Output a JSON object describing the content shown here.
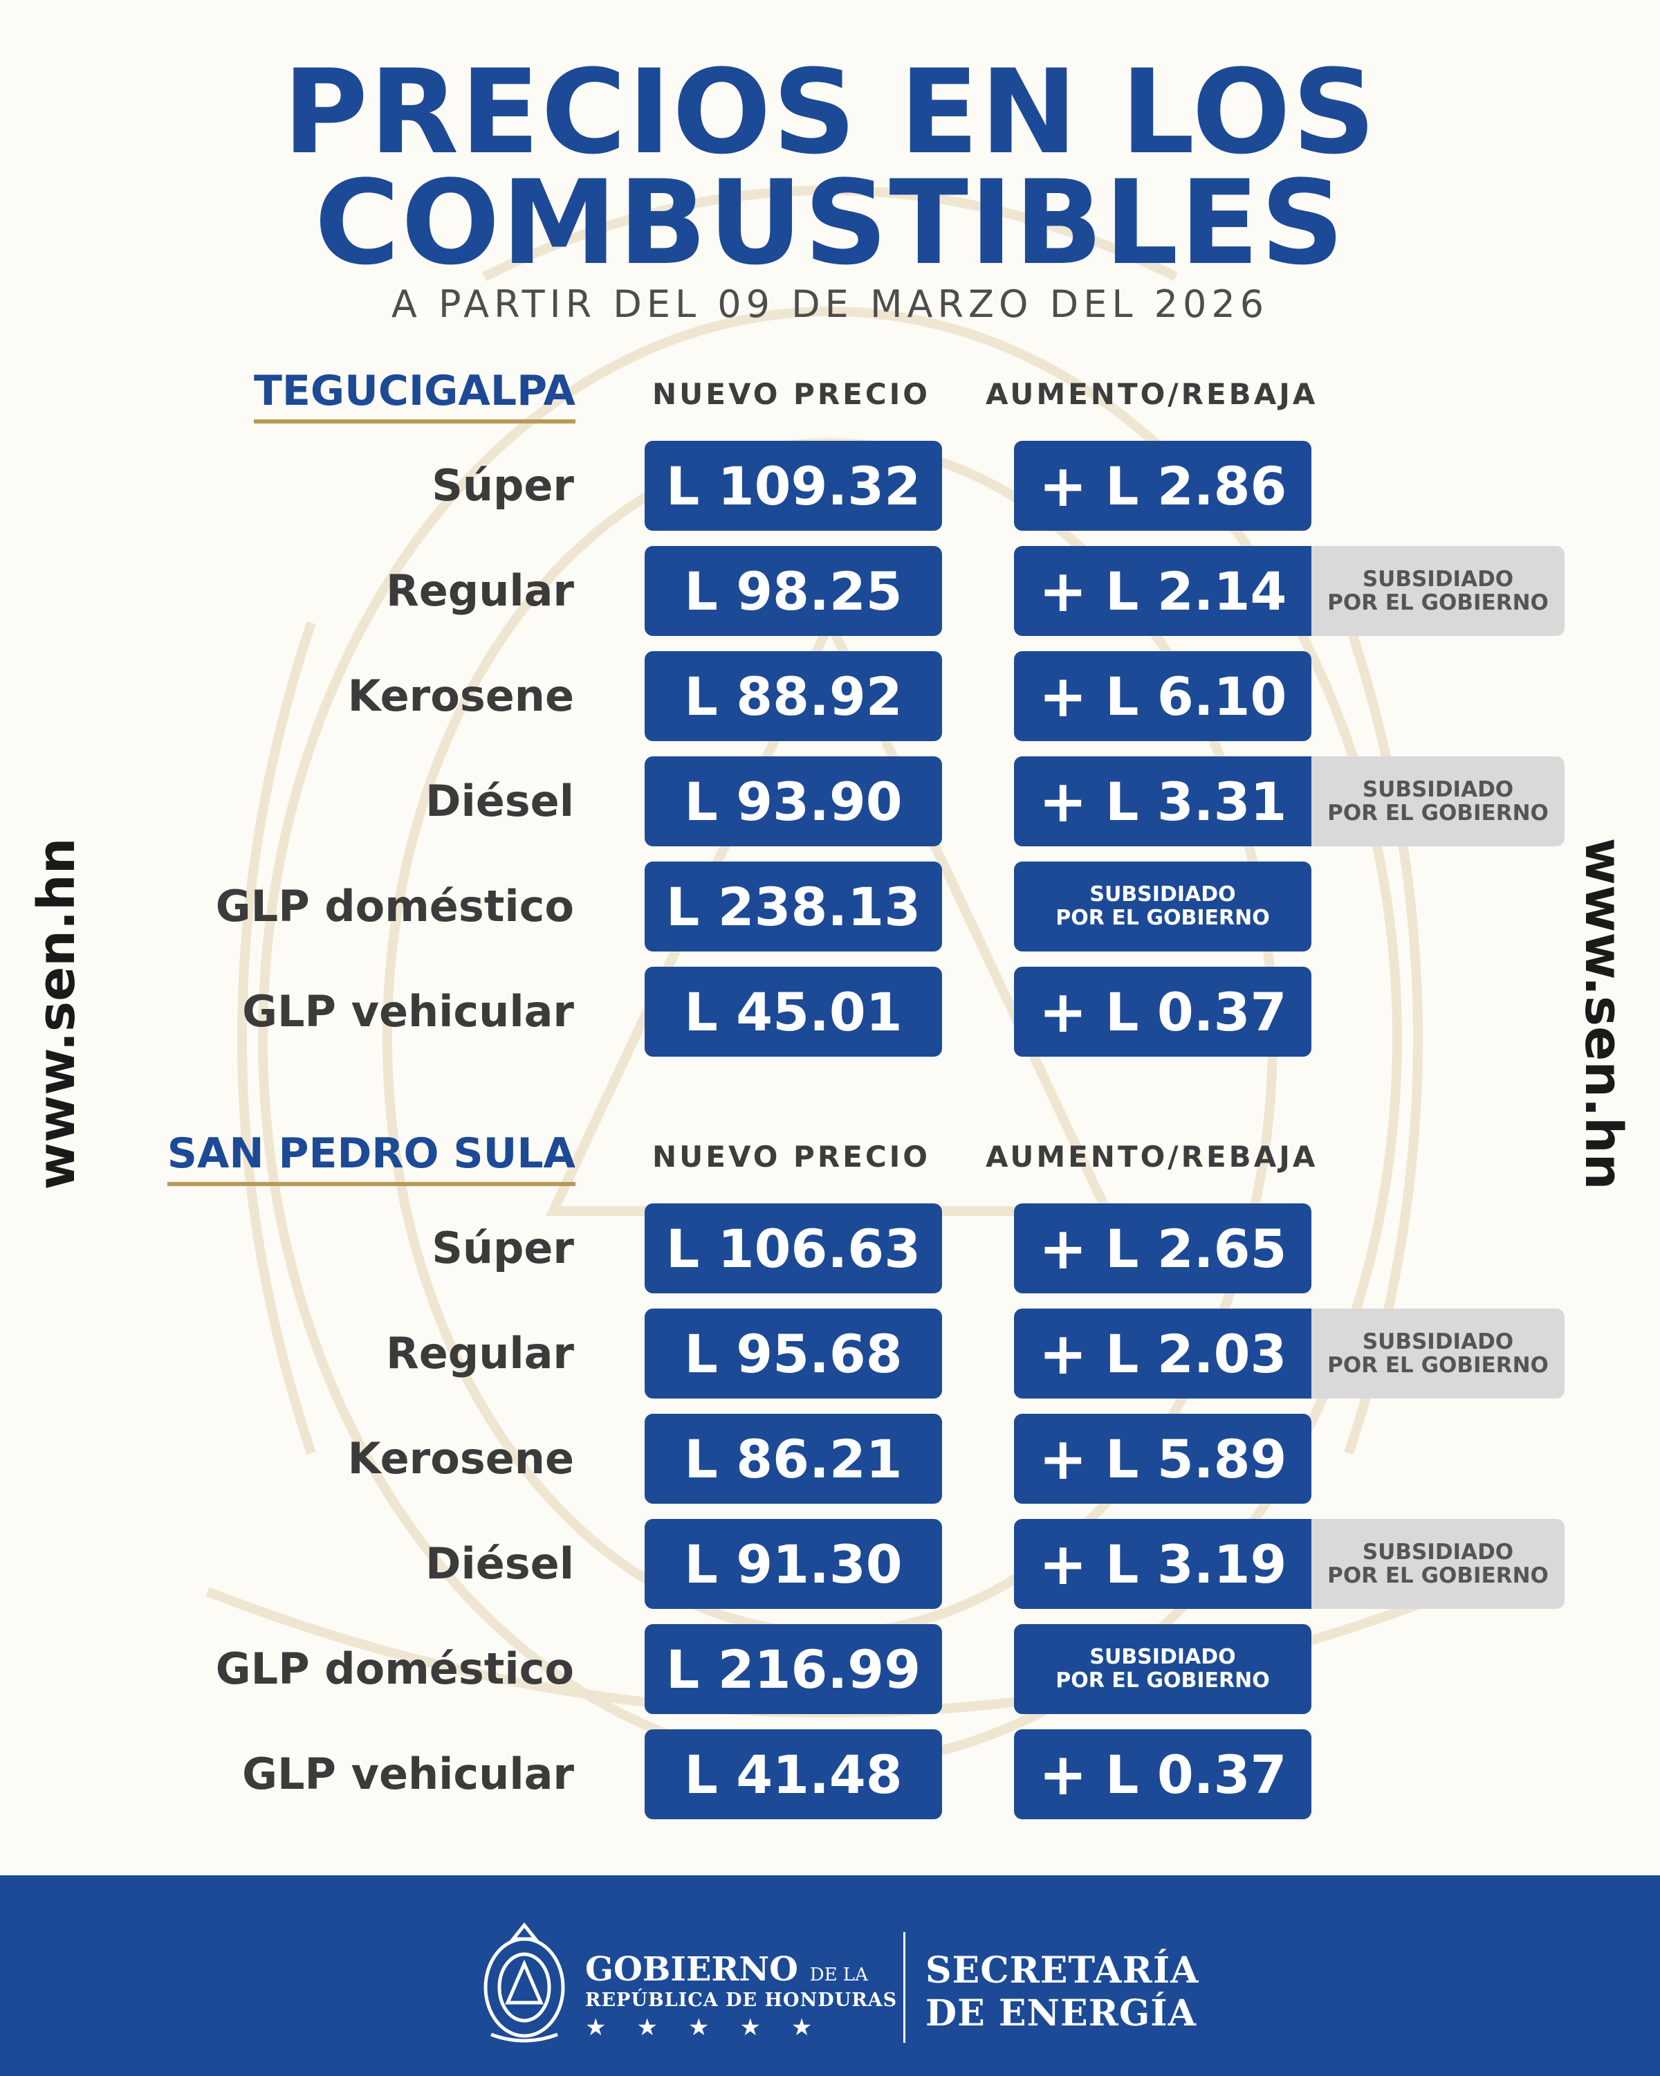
{
  "header": {
    "title_line1": "PRECIOS EN LOS",
    "title_line2": "COMBUSTIBLES",
    "subtitle": "A PARTIR DEL 09 DE MARZO DEL 2026"
  },
  "columns": {
    "price": "NUEVO PRECIO",
    "change": "AUMENTO/REBAJA"
  },
  "subsidy_line1": "SUBSIDIADO",
  "subsidy_line2": "POR EL GOBIERNO",
  "plus_sign": "+",
  "website": "www.sen.hn",
  "sections": [
    {
      "city": "TEGUCIGALPA",
      "rows": [
        {
          "fuel": "Súper",
          "price": "L 109.32",
          "change": "L 2.86"
        },
        {
          "fuel": "Regular",
          "price": "L 98.25",
          "change": "L 2.14"
        },
        {
          "fuel": "Kerosene",
          "price": "L 88.92",
          "change": "L 6.10"
        },
        {
          "fuel": "Diésel",
          "price": "L 93.90",
          "change": "L 3.31"
        },
        {
          "fuel": "GLP doméstico",
          "price": "L 238.13"
        },
        {
          "fuel": "GLP vehicular",
          "price": "L 45.01",
          "change": "L 0.37"
        }
      ]
    },
    {
      "city": "SAN PEDRO SULA",
      "rows": [
        {
          "fuel": "Súper",
          "price": "L 106.63",
          "change": "L 2.65"
        },
        {
          "fuel": "Regular",
          "price": "L 95.68",
          "change": "L 2.03"
        },
        {
          "fuel": "Kerosene",
          "price": "L 86.21",
          "change": "L 5.89"
        },
        {
          "fuel": "Diésel",
          "price": "L 91.30",
          "change": "L 3.19"
        },
        {
          "fuel": "GLP doméstico",
          "price": "L 216.99"
        },
        {
          "fuel": "GLP vehicular",
          "price": "L 41.48",
          "change": "L 0.37"
        }
      ]
    }
  ],
  "footer": {
    "gov_line1": "GOBIERNO",
    "gov_line1_small": "DE LA",
    "gov_line2": "REPÚBLICA DE HONDURAS",
    "stars": "★★★★★",
    "secretaria_line1": "SECRETARÍA",
    "secretaria_line2": "DE ENERGÍA"
  },
  "colors": {
    "brand_blue": "#1c4a96",
    "gold": "#b9995a",
    "gray_tag": "#d9d9d9",
    "background": "#fdfbf5"
  }
}
